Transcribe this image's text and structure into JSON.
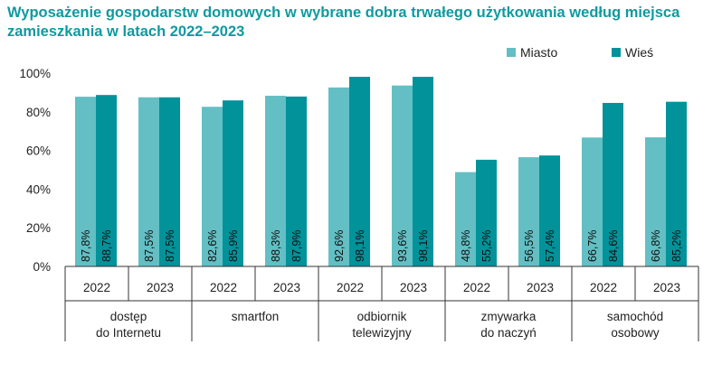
{
  "chart_data": {
    "type": "bar",
    "title": "Wyposażenie gospodarstw domowych w wybrane dobra trwałego użytkowania według miejsca zamieszkania w latach 2022–2023",
    "ylim": [
      0,
      100
    ],
    "yticks": [
      "0%",
      "20%",
      "40%",
      "60%",
      "80%",
      "100%"
    ],
    "ytick_values": [
      0,
      20,
      40,
      60,
      80,
      100
    ],
    "series": [
      {
        "name": "Miasto",
        "color": "#63bfc4"
      },
      {
        "name": "Wieś",
        "color": "#01929a"
      }
    ],
    "groups": [
      {
        "category": [
          "dostęp",
          "do Internetu"
        ],
        "years": [
          {
            "year": "2022",
            "values": [
              87.8,
              88.7
            ],
            "labels": [
              "87,8%",
              "88,7%"
            ]
          },
          {
            "year": "2023",
            "values": [
              87.5,
              87.5
            ],
            "labels": [
              "87,5%",
              "87,5%"
            ]
          }
        ]
      },
      {
        "category": [
          "smartfon"
        ],
        "years": [
          {
            "year": "2022",
            "values": [
              82.6,
              85.9
            ],
            "labels": [
              "82,6%",
              "85,9%"
            ]
          },
          {
            "year": "2023",
            "values": [
              88.3,
              87.9
            ],
            "labels": [
              "88,3%",
              "87,9%"
            ]
          }
        ]
      },
      {
        "category": [
          "odbiornik",
          "telewizyjny"
        ],
        "years": [
          {
            "year": "2022",
            "values": [
              92.6,
              98.1
            ],
            "labels": [
              "92,6%",
              "98,1%"
            ]
          },
          {
            "year": "2023",
            "values": [
              93.6,
              98.1
            ],
            "labels": [
              "93,6%",
              "98,1%"
            ]
          }
        ]
      },
      {
        "category": [
          "zmywarka",
          "do naczyń"
        ],
        "years": [
          {
            "year": "2022",
            "values": [
              48.8,
              55.2
            ],
            "labels": [
              "48,8%",
              "55,2%"
            ]
          },
          {
            "year": "2023",
            "values": [
              56.5,
              57.4
            ],
            "labels": [
              "56,5%",
              "57,4%"
            ]
          }
        ]
      },
      {
        "category": [
          "samochód",
          "osobowy"
        ],
        "years": [
          {
            "year": "2022",
            "values": [
              66.7,
              84.6
            ],
            "labels": [
              "66,7%",
              "84,6%"
            ]
          },
          {
            "year": "2023",
            "values": [
              66.8,
              85.2
            ],
            "labels": [
              "66,8%",
              "85,2%"
            ]
          }
        ]
      }
    ]
  }
}
